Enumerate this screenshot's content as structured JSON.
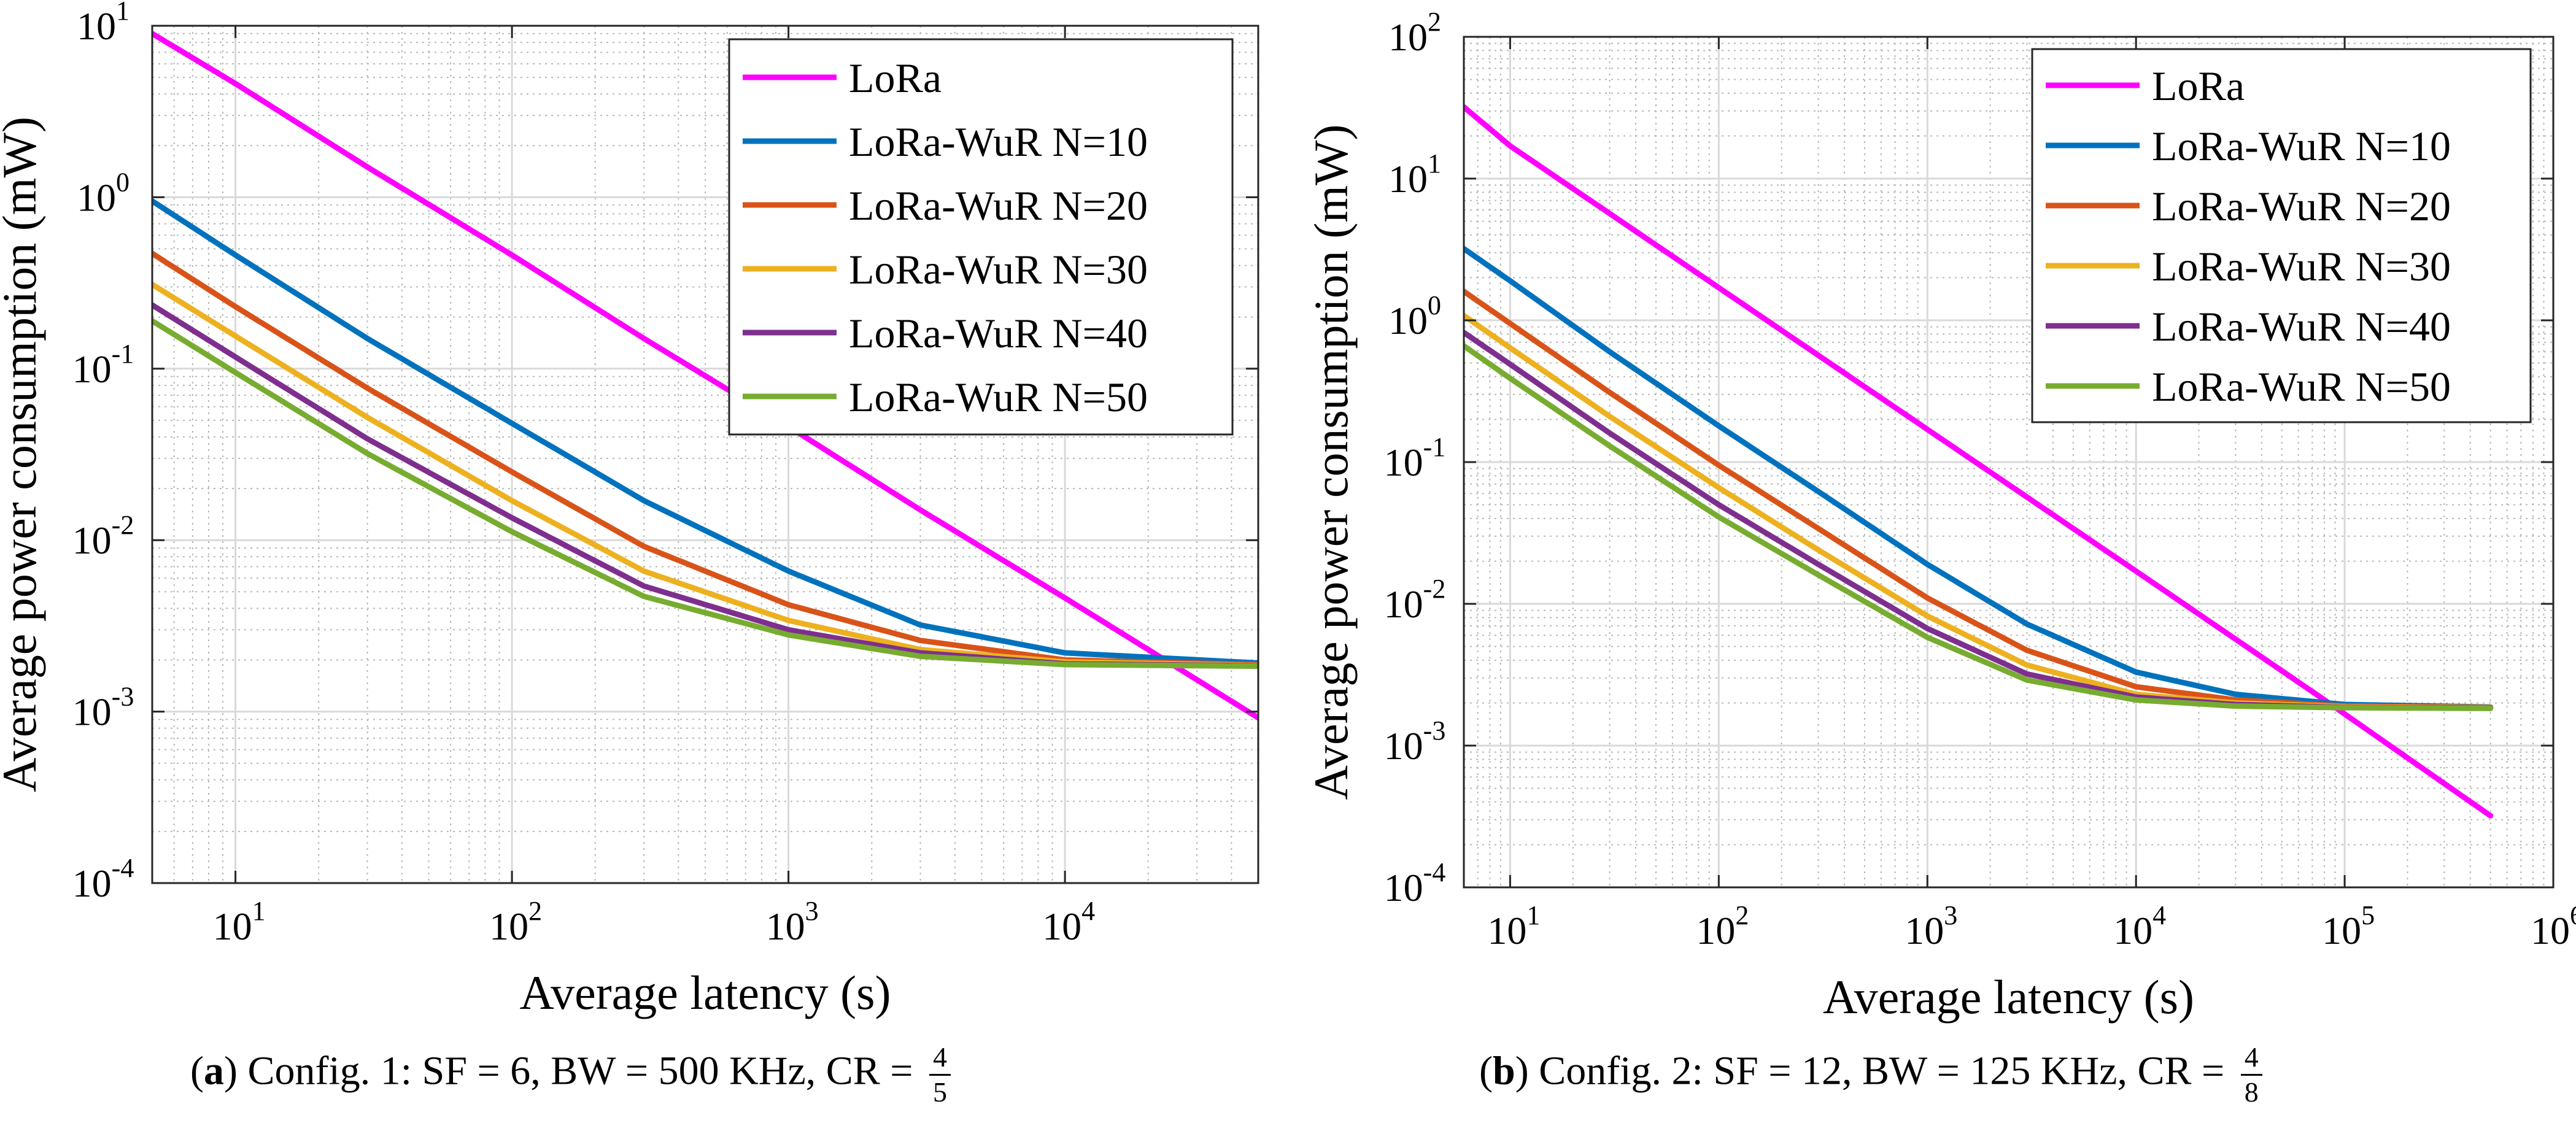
{
  "chart_data": [
    {
      "type": "line",
      "panel": "a",
      "xscale": "log",
      "yscale": "log",
      "xlim": [
        5,
        50000
      ],
      "ylim": [
        0.0001,
        10
      ],
      "xlabel": "Average latency (s)",
      "ylabel": "Average power consumption (mW)",
      "x_ticks": [
        {
          "base": "10",
          "exp": "1",
          "value": 10
        },
        {
          "base": "10",
          "exp": "2",
          "value": 100
        },
        {
          "base": "10",
          "exp": "3",
          "value": 1000
        },
        {
          "base": "10",
          "exp": "4",
          "value": 10000
        }
      ],
      "y_ticks": [
        {
          "base": "10",
          "exp": "-4",
          "value": 0.0001
        },
        {
          "base": "10",
          "exp": "-3",
          "value": 0.001
        },
        {
          "base": "10",
          "exp": "-2",
          "value": 0.01
        },
        {
          "base": "10",
          "exp": "-1",
          "value": 0.1
        },
        {
          "base": "10",
          "exp": "0",
          "value": 1
        },
        {
          "base": "10",
          "exp": "1",
          "value": 10
        }
      ],
      "grid": true,
      "legend_position": "top-right",
      "series": [
        {
          "name": "LoRa",
          "color": "#FF00FF",
          "x": [
            5,
            10,
            30,
            100,
            300,
            1000,
            3000,
            10000,
            20000,
            50000
          ],
          "y": [
            9.0,
            4.6,
            1.5,
            0.46,
            0.15,
            0.046,
            0.015,
            0.0046,
            0.0023,
            0.00092
          ]
        },
        {
          "name": "LoRa-WuR N=10",
          "color": "#0072BD",
          "x": [
            5,
            10,
            30,
            100,
            300,
            1000,
            3000,
            10000,
            50000
          ],
          "y": [
            0.95,
            0.46,
            0.15,
            0.048,
            0.017,
            0.0066,
            0.0032,
            0.0022,
            0.00192
          ]
        },
        {
          "name": "LoRa-WuR N=20",
          "color": "#D95319",
          "x": [
            5,
            10,
            30,
            100,
            300,
            1000,
            3000,
            10000,
            50000
          ],
          "y": [
            0.47,
            0.23,
            0.077,
            0.025,
            0.0092,
            0.0042,
            0.0026,
            0.002,
            0.00188
          ]
        },
        {
          "name": "LoRa-WuR N=30",
          "color": "#EDB120",
          "x": [
            5,
            10,
            30,
            100,
            300,
            1000,
            3000,
            10000,
            50000
          ],
          "y": [
            0.31,
            0.155,
            0.052,
            0.017,
            0.0066,
            0.0034,
            0.0023,
            0.00195,
            0.00186
          ]
        },
        {
          "name": "LoRa-WuR N=40",
          "color": "#7E2F8E",
          "x": [
            5,
            10,
            30,
            100,
            300,
            1000,
            3000,
            10000,
            50000
          ],
          "y": [
            0.235,
            0.117,
            0.039,
            0.0135,
            0.0054,
            0.003,
            0.0022,
            0.0019,
            0.00185
          ]
        },
        {
          "name": "LoRa-WuR N=50",
          "color": "#77AC30",
          "x": [
            5,
            10,
            30,
            100,
            300,
            1000,
            3000,
            10000,
            50000
          ],
          "y": [
            0.19,
            0.095,
            0.032,
            0.0112,
            0.0047,
            0.0028,
            0.0021,
            0.00188,
            0.00184
          ]
        }
      ],
      "caption": {
        "label": "a",
        "text": " Config. 1: SF = 6, BW = 500 KHz, CR = ",
        "cr_num": "4",
        "cr_den": "5"
      }
    },
    {
      "type": "line",
      "panel": "b",
      "xscale": "log",
      "yscale": "log",
      "xlim": [
        6,
        1000000
      ],
      "ylim": [
        0.0001,
        100
      ],
      "xlabel": "Average latency (s)",
      "ylabel": "Average power consumption (mW)",
      "x_ticks": [
        {
          "base": "10",
          "exp": "1",
          "value": 10
        },
        {
          "base": "10",
          "exp": "2",
          "value": 100
        },
        {
          "base": "10",
          "exp": "3",
          "value": 1000
        },
        {
          "base": "10",
          "exp": "4",
          "value": 10000
        },
        {
          "base": "10",
          "exp": "5",
          "value": 100000
        },
        {
          "base": "10",
          "exp": "6",
          "value": 1000000
        }
      ],
      "y_ticks": [
        {
          "base": "10",
          "exp": "-4",
          "value": 0.0001
        },
        {
          "base": "10",
          "exp": "-3",
          "value": 0.001
        },
        {
          "base": "10",
          "exp": "-2",
          "value": 0.01
        },
        {
          "base": "10",
          "exp": "-1",
          "value": 0.1
        },
        {
          "base": "10",
          "exp": "0",
          "value": 1
        },
        {
          "base": "10",
          "exp": "1",
          "value": 10
        },
        {
          "base": "10",
          "exp": "2",
          "value": 100
        }
      ],
      "grid": true,
      "legend_position": "top-right",
      "series": [
        {
          "name": "LoRa",
          "color": "#FF00FF",
          "x": [
            6,
            10,
            100,
            1000,
            10000,
            80000,
            500000
          ],
          "y": [
            32,
            17,
            1.7,
            0.17,
            0.017,
            0.0021,
            0.00032
          ]
        },
        {
          "name": "LoRa-WuR N=10",
          "color": "#0072BD",
          "x": [
            6,
            10,
            30,
            100,
            300,
            1000,
            3000,
            10000,
            30000,
            100000,
            500000
          ],
          "y": [
            3.2,
            1.9,
            0.6,
            0.18,
            0.062,
            0.019,
            0.0072,
            0.0033,
            0.0023,
            0.00195,
            0.00187
          ]
        },
        {
          "name": "LoRa-WuR N=20",
          "color": "#D95319",
          "x": [
            6,
            10,
            30,
            100,
            300,
            1000,
            3000,
            10000,
            30000,
            100000,
            500000
          ],
          "y": [
            1.6,
            0.95,
            0.31,
            0.095,
            0.034,
            0.011,
            0.0047,
            0.0026,
            0.0021,
            0.0019,
            0.00186
          ]
        },
        {
          "name": "LoRa-WuR N=30",
          "color": "#EDB120",
          "x": [
            6,
            10,
            30,
            100,
            300,
            1000,
            3000,
            10000,
            30000,
            100000,
            500000
          ],
          "y": [
            1.08,
            0.64,
            0.21,
            0.066,
            0.024,
            0.0082,
            0.0037,
            0.0023,
            0.002,
            0.00188,
            0.00185
          ]
        },
        {
          "name": "LoRa-WuR N=40",
          "color": "#7E2F8E",
          "x": [
            6,
            10,
            30,
            100,
            300,
            1000,
            3000,
            10000,
            30000,
            100000,
            500000
          ],
          "y": [
            0.82,
            0.49,
            0.16,
            0.05,
            0.019,
            0.0067,
            0.0032,
            0.0022,
            0.00195,
            0.00186,
            0.00184
          ]
        },
        {
          "name": "LoRa-WuR N=50",
          "color": "#77AC30",
          "x": [
            6,
            10,
            30,
            100,
            300,
            1000,
            3000,
            10000,
            30000,
            100000,
            500000
          ],
          "y": [
            0.66,
            0.39,
            0.13,
            0.041,
            0.016,
            0.0058,
            0.0029,
            0.0021,
            0.0019,
            0.00185,
            0.00183
          ]
        }
      ],
      "caption": {
        "label": "b",
        "text": " Config. 2: SF = 12, BW = 125 KHz, CR = ",
        "cr_num": "4",
        "cr_den": "8"
      }
    }
  ]
}
